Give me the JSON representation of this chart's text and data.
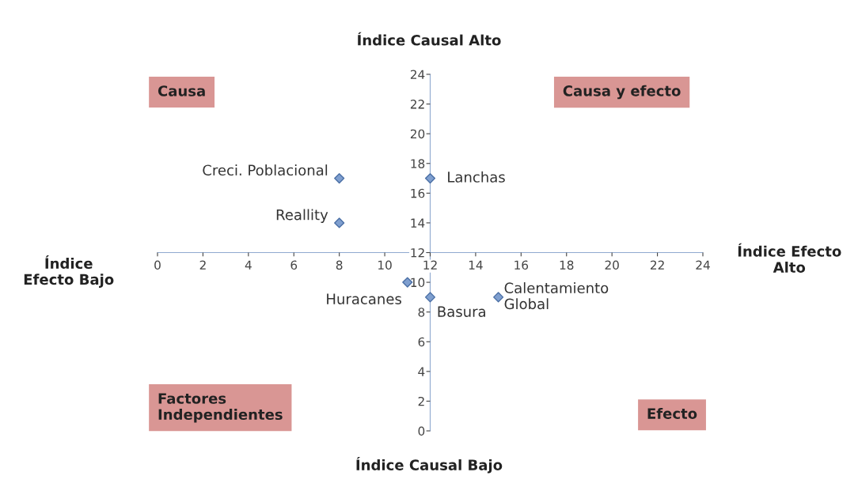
{
  "chart_data": {
    "type": "scatter",
    "x": [
      8,
      8,
      12,
      11,
      12,
      15
    ],
    "values": [
      17,
      14,
      17,
      10,
      9,
      9
    ],
    "color": "#7f9fcf",
    "marker": "diamond",
    "grid": false,
    "legend": false,
    "xlim": [
      0,
      24
    ],
    "ylim": [
      0,
      24
    ],
    "xticks": [
      0,
      2,
      4,
      6,
      8,
      10,
      12,
      14,
      16,
      18,
      20,
      22,
      24
    ],
    "yticks": [
      0,
      2,
      4,
      6,
      8,
      10,
      12,
      14,
      16,
      18,
      20,
      22,
      24
    ],
    "annotations": [
      "Causa",
      "Causa y efecto",
      "Factores\nIndependientes",
      "Efecto",
      "Índice Causal Alto",
      "Índice Causal Bajo",
      "Índice\nEfecto Bajo",
      "Índice Efecto\nAlto",
      {
        "text": "Creci. Poblacional",
        "x": 8,
        "y": 17
      },
      {
        "text": "Reallity",
        "x": 8,
        "y": 14
      },
      {
        "text": "Lanchas",
        "x": 12,
        "y": 17
      },
      {
        "text": "Huracanes",
        "x": 11,
        "y": 10
      },
      {
        "text": "Basura",
        "x": 12,
        "y": 9
      },
      {
        "text": "Calentamiento\nGlobal",
        "x": 15,
        "y": 9
      }
    ]
  }
}
